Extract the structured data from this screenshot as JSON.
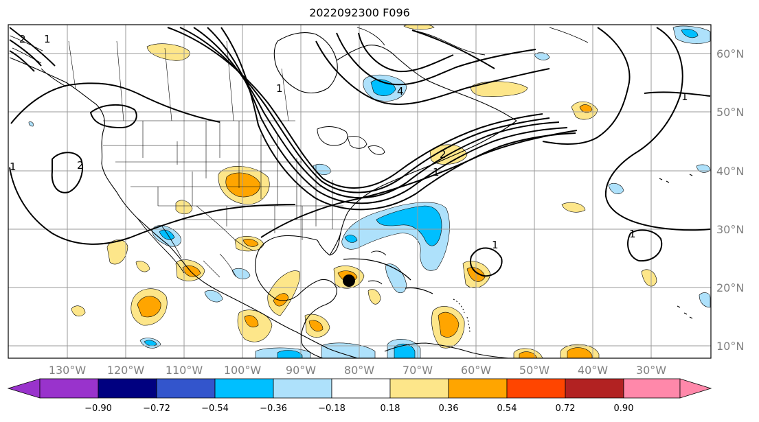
{
  "title": "2022092300 F096",
  "colors": {
    "c_neg_090": "#9933cc",
    "c_neg_072": "#000080",
    "c_neg_054": "#3355cc",
    "c_neg_036": "#00bfff",
    "c_neg_018": "#aee1fb",
    "c_neutral": "#ffffff",
    "c_pos_018": "#fde68a",
    "c_pos_036": "#ffa500",
    "c_pos_054": "#ff4500",
    "c_pos_072": "#b22222",
    "c_pos_090": "#ff88aa",
    "land_outline": "#000000",
    "grid": "#9a9a9a",
    "storm_marker": "#000000"
  },
  "longitude_labels": [
    "130°W",
    "120°W",
    "110°W",
    "100°W",
    "90°W",
    "80°W",
    "70°W",
    "60°W",
    "50°W",
    "40°W",
    "30°W"
  ],
  "latitude_labels": [
    "60°N",
    "50°N",
    "40°N",
    "30°N",
    "20°N",
    "10°N"
  ],
  "colorbar": {
    "ticks": [
      "−0.90",
      "−0.72",
      "−0.54",
      "−0.36",
      "−0.18",
      "0.18",
      "0.36",
      "0.54",
      "0.72",
      "0.90"
    ]
  },
  "contour_labels": [
    "1",
    "1",
    "1",
    "1",
    "2",
    "2",
    "2",
    "1",
    "4",
    "1",
    "1"
  ],
  "storm_marker": {
    "name": "storm-center-marker",
    "lon": -83.5,
    "lat": 21.5
  }
}
